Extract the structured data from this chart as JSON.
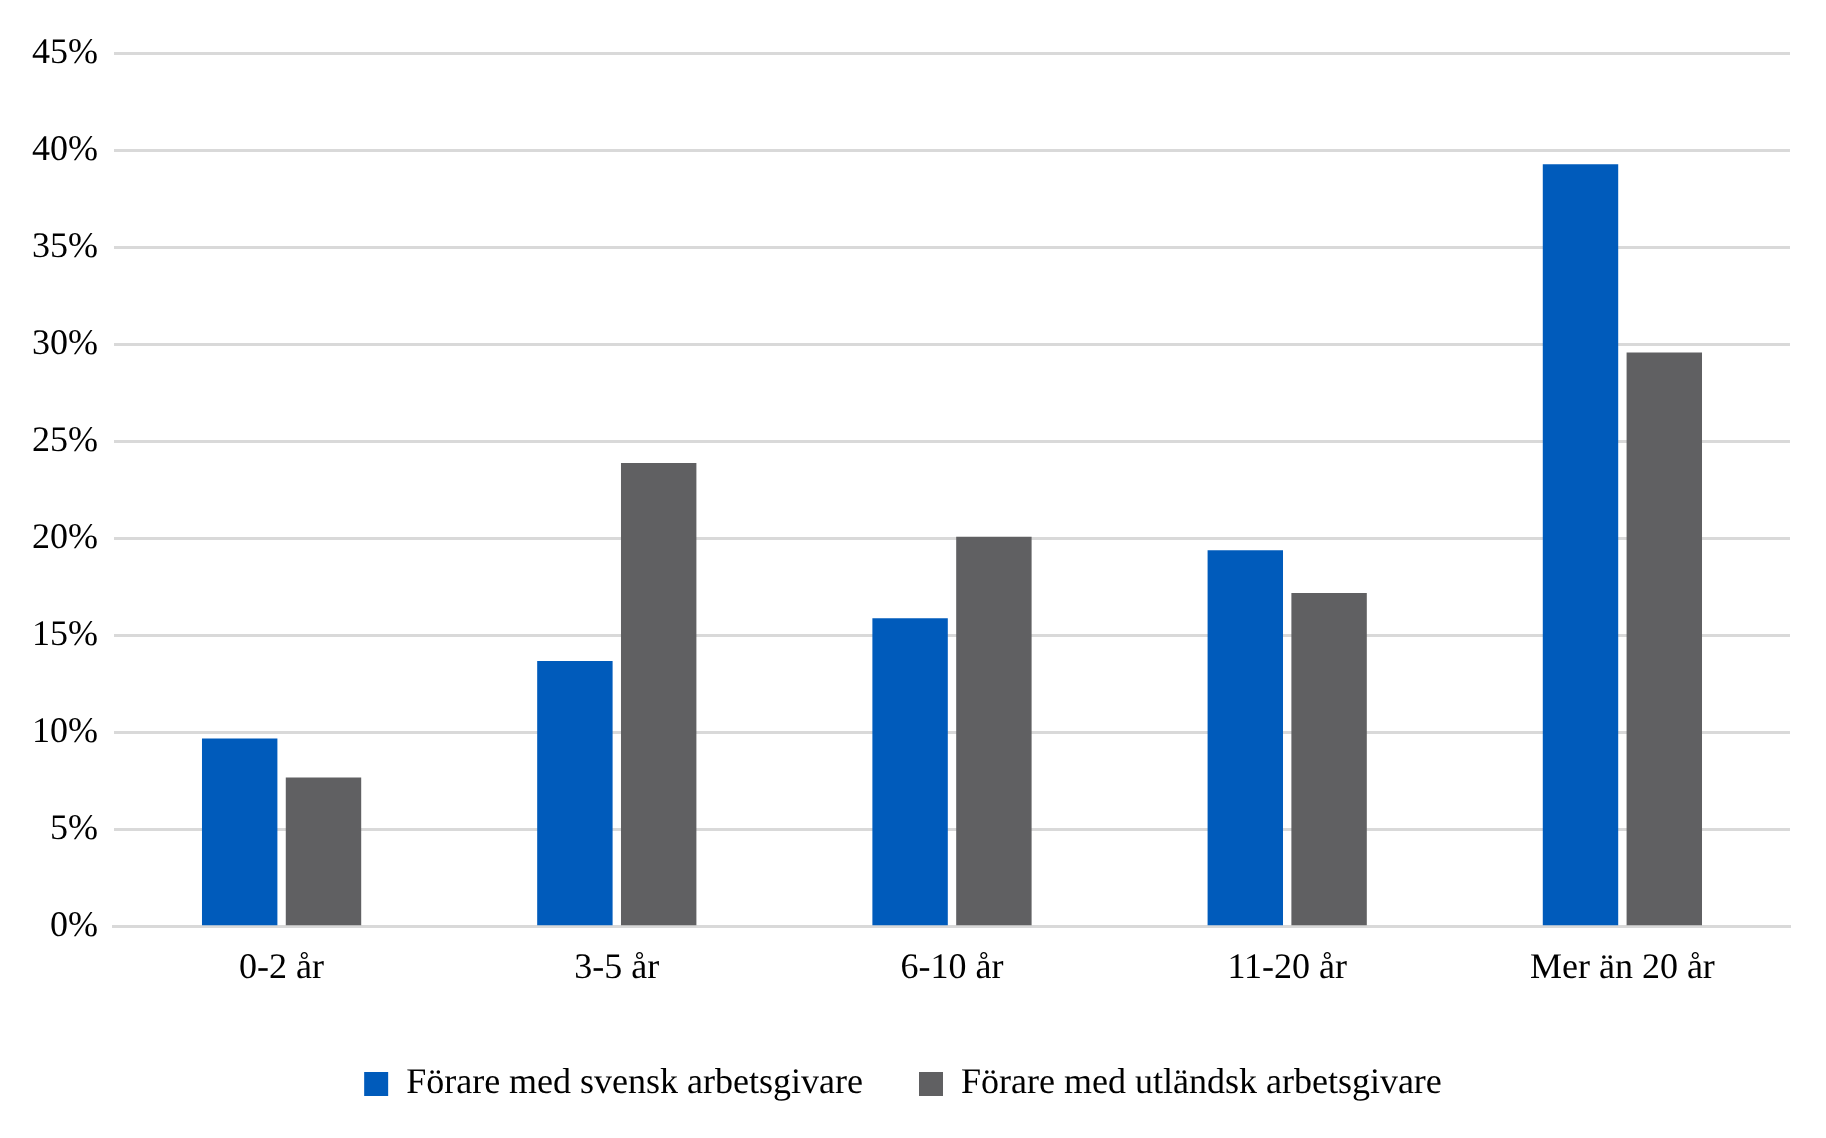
{
  "chart_data": {
    "type": "bar",
    "categories": [
      "0-2 år",
      "3-5 år",
      "6-10 år",
      "11-20 år",
      "Mer än 20 år"
    ],
    "series": [
      {
        "name": "Förare med svensk arbetsgivare",
        "color": "#005bbb",
        "values": [
          9.7,
          13.7,
          15.9,
          19.4,
          39.3
        ]
      },
      {
        "name": "Förare med utländsk arbetsgivare",
        "color": "#606062",
        "values": [
          7.7,
          23.9,
          20.1,
          17.2,
          29.6
        ]
      }
    ],
    "ylim": [
      0,
      45
    ],
    "yticks": [
      {
        "value": 0,
        "label": "0%"
      },
      {
        "value": 5,
        "label": "5%"
      },
      {
        "value": 10,
        "label": "10%"
      },
      {
        "value": 15,
        "label": "15%"
      },
      {
        "value": 20,
        "label": "20%"
      },
      {
        "value": 25,
        "label": "25%"
      },
      {
        "value": 30,
        "label": "30%"
      },
      {
        "value": 35,
        "label": "35%"
      },
      {
        "value": 40,
        "label": "40%"
      },
      {
        "value": 45,
        "label": "45%"
      }
    ],
    "grid": "y",
    "legend": "bottom"
  }
}
